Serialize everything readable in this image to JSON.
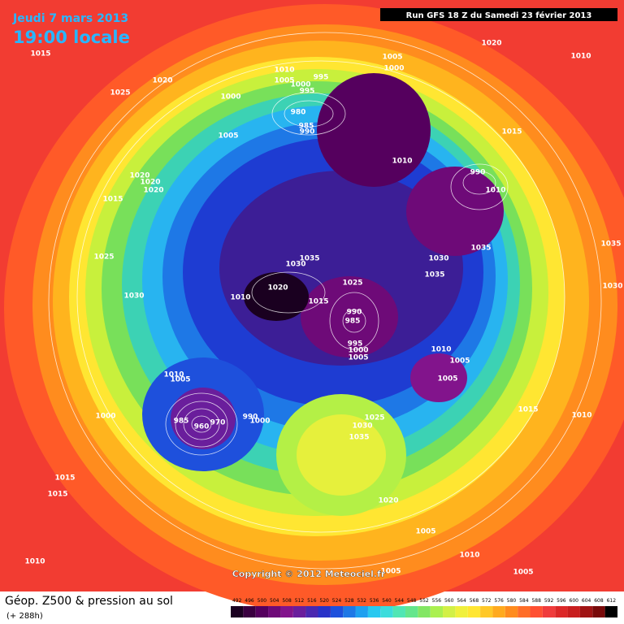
{
  "header": {
    "date": "Jeudi 7 mars 2013",
    "time": "19:00 locale",
    "run": "Run GFS 18 Z du Samedi 23 février 2013"
  },
  "map": {
    "isobar_labels": [
      1015,
      1020,
      1025,
      1000,
      1010,
      1005,
      1000,
      995,
      995,
      980,
      985,
      990,
      1005,
      1000,
      1020,
      1010,
      1005,
      1015,
      1010,
      990,
      1010,
      1020,
      1020,
      1020,
      1015,
      1025,
      1035,
      1030,
      1030,
      1035,
      1035,
      1020,
      1010,
      1025,
      1015,
      990,
      985,
      995,
      1000,
      1005,
      1010,
      1005,
      1005,
      1030,
      1010,
      1005,
      1000,
      985,
      960,
      970,
      990,
      1000,
      1025,
      1030,
      1035,
      1020,
      1015,
      1010,
      1015,
      1015,
      1005,
      1010,
      1005,
      1005,
      1010,
      1035,
      1030
    ],
    "copyright": "Copyright © 2012 Meteociel.fr"
  },
  "footer": {
    "title": "Géop. Z500 & pression au sol",
    "lead": "(+ 288h)",
    "scale": {
      "labels": [
        492,
        496,
        500,
        504,
        508,
        512,
        516,
        520,
        524,
        528,
        532,
        536,
        540,
        544,
        548,
        552,
        556,
        560,
        564,
        568,
        572,
        576,
        580,
        584,
        588,
        592,
        596,
        600,
        604,
        608,
        612
      ],
      "colors": [
        "#1a0020",
        "#3a0040",
        "#55005e",
        "#6e0a78",
        "#82148c",
        "#6a1e9c",
        "#4a28b0",
        "#2832c8",
        "#1e50dc",
        "#1e78e6",
        "#1ea0f0",
        "#28c8f0",
        "#3cdcdc",
        "#50e6b4",
        "#64e68c",
        "#82e664",
        "#aaf050",
        "#d2f046",
        "#f0f03c",
        "#ffe632",
        "#ffc828",
        "#ffaa1e",
        "#ff8c1e",
        "#ff6e28",
        "#ff5032",
        "#f03c3c",
        "#dc2828",
        "#c81e1e",
        "#a01414",
        "#780a0a",
        "#000000"
      ]
    }
  }
}
